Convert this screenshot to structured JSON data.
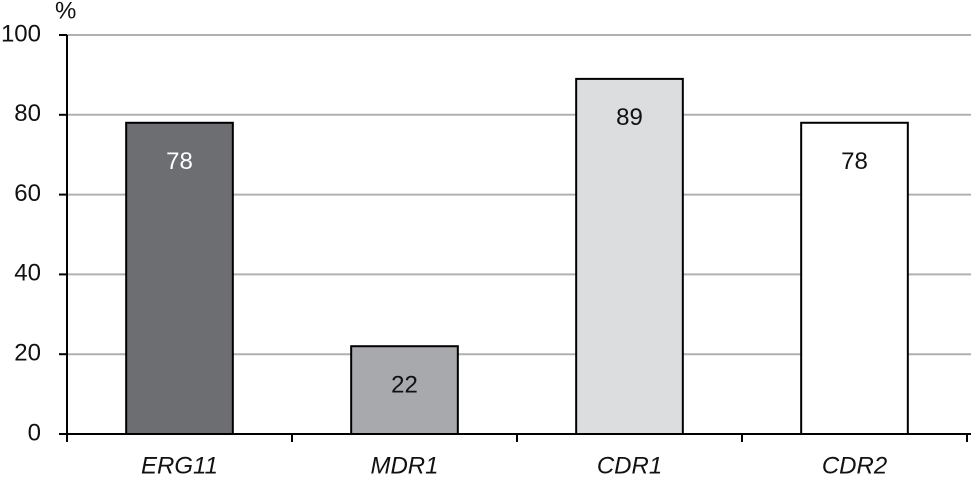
{
  "chart_data": {
    "type": "bar",
    "y_label": "%",
    "categories": [
      "ERG11",
      "MDR1",
      "CDR1",
      "CDR2"
    ],
    "values": [
      78,
      22,
      89,
      78
    ],
    "colors": [
      "#6d6e71",
      "#a7a9ac",
      "#dcdddf",
      "#ffffff"
    ],
    "ylim": [
      0,
      100
    ],
    "yticks": [
      0,
      20,
      40,
      60,
      80,
      100
    ],
    "grid": true
  }
}
